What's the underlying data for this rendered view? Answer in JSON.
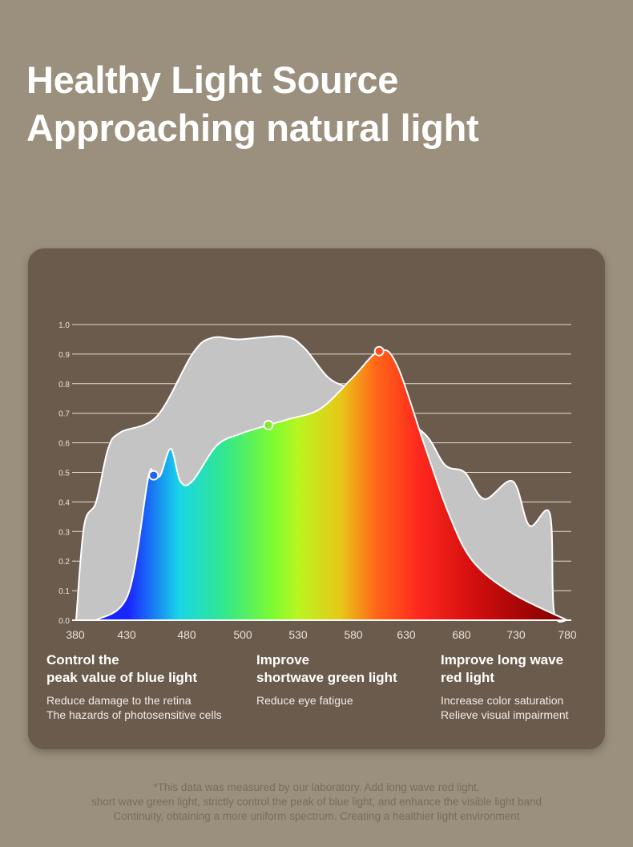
{
  "header": {
    "title_line1": "Healthy Light Source",
    "title_line2": "Approaching natural light"
  },
  "chart_data": {
    "type": "area",
    "title": "",
    "xlabel": "",
    "ylabel": "",
    "x_ticks": [
      380,
      430,
      480,
      500,
      530,
      580,
      630,
      680,
      730,
      780
    ],
    "y_ticks": [
      "0.0",
      "0.1",
      "0.2",
      "0.3",
      "0.4",
      "0.5",
      "0.6",
      "0.7",
      "0.8",
      "0.9",
      "1.0"
    ],
    "ylim": [
      0,
      1.0
    ],
    "grid": "horizontal",
    "series": [
      {
        "color": "#c4c4c4",
        "points": [
          [
            380.8,
            0
          ],
          [
            388.6,
            0.32
          ],
          [
            400.3,
            0.4
          ],
          [
            412,
            0.58
          ],
          [
            423.8,
            0.635
          ],
          [
            455.3,
            0.69
          ],
          [
            482,
            0.9
          ],
          [
            489,
            0.955
          ],
          [
            499,
            0.95
          ],
          [
            522.6,
            0.96
          ],
          [
            535.8,
            0.92
          ],
          [
            557.5,
            0.82
          ],
          [
            579,
            0.78
          ],
          [
            610,
            0.72
          ],
          [
            646.7,
            0.63
          ],
          [
            665,
            0.525
          ],
          [
            683,
            0.5
          ],
          [
            701,
            0.41
          ],
          [
            727,
            0.47
          ],
          [
            743,
            0.32
          ],
          [
            763,
            0.36
          ],
          [
            767,
            0.03
          ],
          [
            780,
            0
          ]
        ]
      },
      {
        "gradient": [
          "#1a24ff",
          "#18d6e8",
          "#34e88a",
          "#7dfb30",
          "#b8f520",
          "#e8c818",
          "#ff6a18",
          "#ff2a1e",
          "#d81010",
          "#8a0000"
        ],
        "points": [
          [
            400.3,
            0
          ],
          [
            431.5,
            0.09
          ],
          [
            447.9,
            0.48
          ],
          [
            452.5,
            0.49
          ],
          [
            458.1,
            0.49
          ],
          [
            466.8,
            0.58
          ],
          [
            474.7,
            0.47
          ],
          [
            482,
            0.47
          ],
          [
            490.6,
            0.59
          ],
          [
            499,
            0.63
          ],
          [
            513.9,
            0.66
          ],
          [
            524.8,
            0.68
          ],
          [
            550,
            0.715
          ],
          [
            579.2,
            0.82
          ],
          [
            604.4,
            0.91
          ],
          [
            621,
            0.865
          ],
          [
            646.7,
            0.59
          ],
          [
            668.5,
            0.36
          ],
          [
            690.3,
            0.2
          ],
          [
            727,
            0.09
          ],
          [
            780,
            0
          ]
        ]
      }
    ],
    "markers": [
      {
        "x": 452.5,
        "y": 0.49,
        "color": "#2062f0"
      },
      {
        "x": 513.9,
        "y": 0.66,
        "color": "#82e832"
      },
      {
        "x": 604.4,
        "y": 0.91,
        "color": "#ff4a20"
      }
    ]
  },
  "captions": [
    {
      "heading_1": "Control the",
      "heading_2": "peak value of blue light",
      "text_1": "Reduce damage to the retina",
      "text_2": "The hazards of photosensitive cells"
    },
    {
      "heading_1": "Improve",
      "heading_2": "shortwave green light",
      "text_1": "Reduce eye fatigue",
      "text_2": ""
    },
    {
      "heading_1": "Improve long wave",
      "heading_2": "red light",
      "text_1": "Increase color saturation",
      "text_2": "Relieve visual impairment"
    }
  ],
  "footnote": {
    "line1": "*This data was measured by our laboratory. Add long wave red light,",
    "line2": "short wave green light, strictly control the peak of blue light, and enhance the visible light band",
    "line3": "Continuity, obtaining a more uniform spectrum. Creating a healthier light environment"
  }
}
